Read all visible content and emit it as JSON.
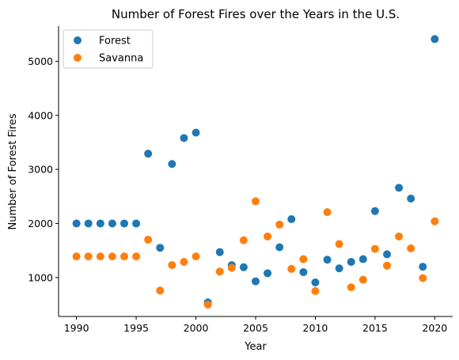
{
  "chart_data": {
    "type": "scatter",
    "title": "Number of Forest Fires over the Years in the U.S.",
    "xlabel": "Year",
    "ylabel": "Number of Forest Fires",
    "xlim": [
      1988.5,
      2021.5
    ],
    "ylim": [
      280,
      5650
    ],
    "xticks": [
      1990,
      1995,
      2000,
      2005,
      2010,
      2015,
      2020
    ],
    "yticks": [
      1000,
      2000,
      3000,
      4000,
      5000
    ],
    "legend_position": "top-left",
    "series": [
      {
        "name": "Forest",
        "color": "#1f77b4",
        "x": [
          1990,
          1991,
          1992,
          1993,
          1994,
          1995,
          1996,
          1997,
          1998,
          1999,
          2000,
          2001,
          2002,
          2003,
          2004,
          2005,
          2006,
          2007,
          2008,
          2009,
          2010,
          2011,
          2012,
          2013,
          2014,
          2015,
          2016,
          2017,
          2018,
          2019,
          2020
        ],
        "y": [
          2000,
          2000,
          2000,
          2000,
          2000,
          2000,
          3290,
          1550,
          3100,
          3580,
          3680,
          540,
          1470,
          1230,
          1190,
          930,
          1080,
          1560,
          2080,
          1100,
          910,
          1330,
          1170,
          1290,
          1340,
          2230,
          1430,
          2660,
          2460,
          1200,
          5410
        ]
      },
      {
        "name": "Savanna",
        "color": "#ff7f0e",
        "x": [
          1990,
          1991,
          1992,
          1993,
          1994,
          1995,
          1996,
          1997,
          1998,
          1999,
          2000,
          2001,
          2002,
          2003,
          2004,
          2005,
          2006,
          2007,
          2008,
          2009,
          2010,
          2011,
          2012,
          2013,
          2014,
          2015,
          2016,
          2017,
          2018,
          2019,
          2020
        ],
        "y": [
          1390,
          1390,
          1390,
          1390,
          1390,
          1390,
          1700,
          760,
          1230,
          1290,
          1390,
          500,
          1110,
          1180,
          1690,
          2410,
          1760,
          1980,
          1160,
          1340,
          750,
          2210,
          1620,
          820,
          960,
          1530,
          1220,
          1760,
          1540,
          990,
          2040
        ]
      }
    ]
  }
}
